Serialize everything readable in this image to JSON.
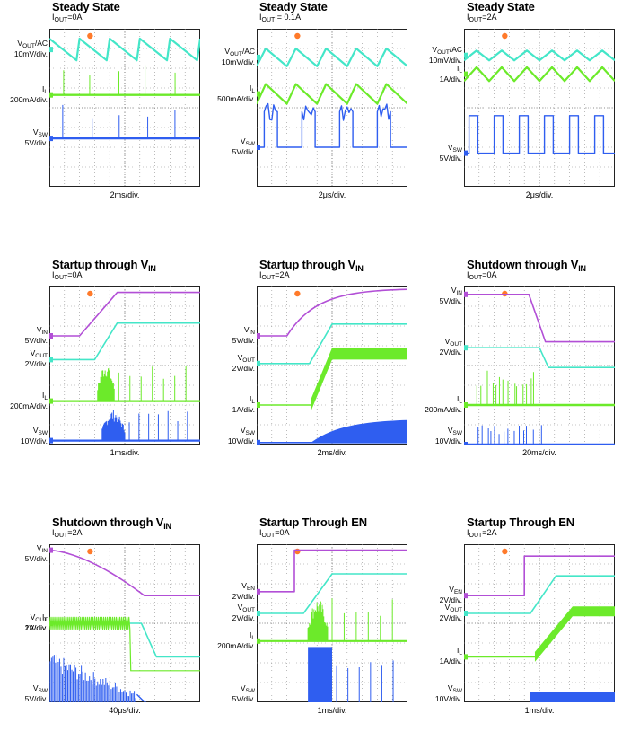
{
  "colors": {
    "cyan": "#44e6c8",
    "green": "#6cea2a",
    "blue": "#2f5ef0",
    "purple": "#b24fd6",
    "orange": "#ff7a2a",
    "grid": "#8c8c8c"
  },
  "chart_data": [
    {
      "id": "p1",
      "type": "line",
      "title": "Steady State",
      "condition": {
        "label": "I",
        "sub": "OUT",
        "rest": "=0A"
      },
      "time_div": "2ms/div.",
      "channels": [
        {
          "name": "V",
          "sub": "OUT",
          "suffix": "/AC",
          "scale": "10mV/div.",
          "color": "cyan"
        },
        {
          "name": "I",
          "sub": "L",
          "suffix": "",
          "scale": "200mA/div.",
          "color": "green"
        },
        {
          "name": "V",
          "sub": "SW",
          "suffix": "",
          "scale": "5V/div.",
          "color": "blue"
        }
      ],
      "waveforms": [
        {
          "ch": 0,
          "kind": "saw_down",
          "base_div": 1.05,
          "amp_div": 1.1,
          "periods": 5
        },
        {
          "ch": 1,
          "kind": "spikes_up",
          "base_div": 3.35,
          "amp_div": 1.6,
          "count": 5
        },
        {
          "ch": 2,
          "kind": "spikes_up",
          "base_div": 5.55,
          "amp_div": 1.9,
          "count": 5
        }
      ]
    },
    {
      "id": "p2",
      "type": "line",
      "title": "Steady State",
      "condition": {
        "label": "I",
        "sub": "OUT",
        "rest": " = 0.1A"
      },
      "time_div": "2μs/div.",
      "channels": [
        {
          "name": "V",
          "sub": "OUT",
          "suffix": "/AC",
          "scale": "10mV/div.",
          "color": "cyan"
        },
        {
          "name": "I",
          "sub": "L",
          "suffix": "",
          "scale": "500mA/div.",
          "color": "green"
        },
        {
          "name": "V",
          "sub": "SW",
          "suffix": "",
          "scale": "5V/div.",
          "color": "blue"
        }
      ],
      "waveforms": [
        {
          "ch": 0,
          "kind": "saw_up",
          "base_div": 1.45,
          "amp_div": 0.9,
          "periods": 5
        },
        {
          "ch": 1,
          "kind": "saw_up",
          "base_div": 3.3,
          "amp_div": 1.0,
          "periods": 5
        },
        {
          "ch": 2,
          "kind": "square_noisy",
          "lo_div": 6.0,
          "hi_div": 4.2,
          "periods": 4
        }
      ]
    },
    {
      "id": "p3",
      "type": "line",
      "title": "Steady State",
      "condition": {
        "label": "I",
        "sub": "OUT",
        "rest": "=2A"
      },
      "time_div": "2μs/div.",
      "channels": [
        {
          "name": "V",
          "sub": "OUT",
          "suffix": "/AC",
          "scale": "10mV/div.",
          "color": "cyan"
        },
        {
          "name": "I",
          "sub": "L",
          "suffix": "",
          "scale": "1A/div.",
          "color": "green"
        },
        {
          "name": "V",
          "sub": "SW",
          "suffix": "",
          "scale": "5V/div.",
          "color": "blue"
        }
      ],
      "waveforms": [
        {
          "ch": 0,
          "kind": "tri",
          "base_div": 1.35,
          "amp_div": 0.5,
          "periods": 6
        },
        {
          "ch": 1,
          "kind": "tri",
          "base_div": 2.3,
          "amp_div": 0.7,
          "periods": 6
        },
        {
          "ch": 2,
          "kind": "square",
          "lo_div": 6.3,
          "hi_div": 4.4,
          "periods": 6
        }
      ]
    },
    {
      "id": "p4",
      "type": "line",
      "title": "Startup through V",
      "title_sub": "IN",
      "condition": {
        "label": "I",
        "sub": "OUT",
        "rest": "=0A"
      },
      "time_div": "1ms/div.",
      "channels": [
        {
          "name": "V",
          "sub": "IN",
          "suffix": "",
          "scale": "5V/div.",
          "color": "purple"
        },
        {
          "name": "V",
          "sub": "OUT",
          "suffix": "",
          "scale": "2V/div.",
          "color": "cyan"
        },
        {
          "name": "I",
          "sub": "L",
          "suffix": "",
          "scale": "200mA/div.",
          "color": "green"
        },
        {
          "name": "V",
          "sub": "SW",
          "suffix": "",
          "scale": "10V/div.",
          "color": "blue"
        }
      ],
      "waveforms": [
        {
          "ch": 0,
          "kind": "ramp",
          "from_div": 2.5,
          "to_div": 0.3,
          "t0": 2.0,
          "t1": 4.5
        },
        {
          "ch": 1,
          "kind": "ramp",
          "from_div": 3.7,
          "to_div": 1.85,
          "t0": 3.0,
          "t1": 4.5
        },
        {
          "ch": 2,
          "kind": "burst",
          "base_div": 5.8,
          "amp_div": 2.0,
          "t0": 3.2,
          "t1": 4.3,
          "spikes_after": 7
        },
        {
          "ch": 3,
          "kind": "burst",
          "base_div": 7.8,
          "amp_div": 1.6,
          "t0": 3.5,
          "t1": 5.0,
          "spikes_after": 7
        }
      ]
    },
    {
      "id": "p5",
      "type": "line",
      "title": "Startup through V",
      "title_sub": "IN",
      "condition": {
        "label": "I",
        "sub": "OUT",
        "rest": "=2A"
      },
      "time_div": "2ms/div.",
      "channels": [
        {
          "name": "V",
          "sub": "IN",
          "suffix": "",
          "scale": "5V/div.",
          "color": "purple"
        },
        {
          "name": "V",
          "sub": "OUT",
          "suffix": "",
          "scale": "2V/div.",
          "color": "cyan"
        },
        {
          "name": "I",
          "sub": "L",
          "suffix": "",
          "scale": "1A/div.",
          "color": "green"
        },
        {
          "name": "V",
          "sub": "SW",
          "suffix": "",
          "scale": "10V/div.",
          "color": "blue"
        }
      ],
      "waveforms": [
        {
          "ch": 0,
          "kind": "expo",
          "from_div": 2.5,
          "to_div": 0.1,
          "t0": 2.0,
          "tau": 2.0
        },
        {
          "ch": 1,
          "kind": "ramp",
          "from_div": 3.9,
          "to_div": 1.9,
          "t0": 3.5,
          "t1": 5.0
        },
        {
          "ch": 2,
          "kind": "band_ramp",
          "from_div": 6.0,
          "to_div": 3.4,
          "t0": 3.6,
          "t1": 5.0,
          "band_div": 0.6
        },
        {
          "ch": 3,
          "kind": "band_rise",
          "base_div": 7.9,
          "top_div": 6.7,
          "t0": 3.6
        }
      ]
    },
    {
      "id": "p6",
      "type": "line",
      "title": "Shutdown through V",
      "title_sub": "IN",
      "condition": {
        "label": "I",
        "sub": "OUT",
        "rest": "=0A"
      },
      "time_div": "20ms/div.",
      "channels": [
        {
          "name": "V",
          "sub": "IN",
          "suffix": "",
          "scale": "5V/div.",
          "color": "purple"
        },
        {
          "name": "V",
          "sub": "OUT",
          "suffix": "",
          "scale": "2V/div.",
          "color": "cyan"
        },
        {
          "name": "I",
          "sub": "L",
          "suffix": "",
          "scale": "200mA/div.",
          "color": "green"
        },
        {
          "name": "V",
          "sub": "SW",
          "suffix": "",
          "scale": "10V/div.",
          "color": "blue"
        }
      ],
      "waveforms": [
        {
          "ch": 0,
          "kind": "ramp",
          "from_div": 0.4,
          "to_div": 2.8,
          "t0": 4.3,
          "t1": 5.4
        },
        {
          "ch": 1,
          "kind": "ramp",
          "from_div": 3.1,
          "to_div": 4.1,
          "t0": 5.0,
          "t1": 5.6
        },
        {
          "ch": 2,
          "kind": "spikes_up",
          "base_div": 6.0,
          "amp_div": 1.9,
          "count": 14,
          "until": 4.9
        },
        {
          "ch": 3,
          "kind": "spikes_up",
          "base_div": 8.0,
          "amp_div": 1.0,
          "count": 16,
          "until": 5.6
        }
      ]
    },
    {
      "id": "p7",
      "type": "line",
      "title": "Shutdown through V",
      "title_sub": "IN",
      "condition": {
        "label": "I",
        "sub": "OUT",
        "rest": "=2A"
      },
      "time_div": "40μs/div.",
      "channels": [
        {
          "name": "V",
          "sub": "IN",
          "suffix": "",
          "scale": "5V/div.",
          "color": "purple"
        },
        {
          "name": "V",
          "sub": "OUT",
          "suffix": "",
          "scale": "2V/div.",
          "color": "cyan"
        },
        {
          "name": "I",
          "sub": "L",
          "suffix": "",
          "scale": "1A/div.",
          "color": "green"
        },
        {
          "name": "V",
          "sub": "SW",
          "suffix": "",
          "scale": "5V/div.",
          "color": "blue"
        }
      ],
      "waveforms": [
        {
          "ch": 0,
          "kind": "droop",
          "from_div": 0.3,
          "to_div": 2.6,
          "t0": 0.0,
          "t1": 6.3
        },
        {
          "ch": 1,
          "kind": "ramp",
          "from_div": 4.0,
          "to_div": 5.7,
          "t0": 6.1,
          "t1": 7.1
        },
        {
          "ch": 2,
          "kind": "band_flat",
          "base_div": 4.0,
          "band_div": 0.6,
          "t1": 5.4,
          "after_div": 6.4
        },
        {
          "ch": 3,
          "kind": "dense_decay",
          "base_div": 8.8,
          "amp_div": 3.4,
          "t1": 5.8
        }
      ]
    },
    {
      "id": "p8",
      "type": "line",
      "title": "Startup Through EN",
      "condition": {
        "label": "I",
        "sub": "OUT",
        "rest": "=0A"
      },
      "time_div": "1ms/div.",
      "channels": [
        {
          "name": "V",
          "sub": "EN",
          "suffix": "",
          "scale": "2V/div.",
          "color": "purple"
        },
        {
          "name": "V",
          "sub": "OUT",
          "suffix": "",
          "scale": "2V/div.",
          "color": "cyan"
        },
        {
          "name": "I",
          "sub": "L",
          "suffix": "",
          "scale": "200mA/div.",
          "color": "green"
        },
        {
          "name": "V",
          "sub": "SW",
          "suffix": "",
          "scale": "5V/div.",
          "color": "blue"
        }
      ],
      "waveforms": [
        {
          "ch": 0,
          "kind": "step",
          "from_div": 2.4,
          "to_div": 0.3,
          "t0": 2.5
        },
        {
          "ch": 1,
          "kind": "ramp",
          "from_div": 3.5,
          "to_div": 1.5,
          "t0": 3.1,
          "t1": 5.0
        },
        {
          "ch": 2,
          "kind": "burst",
          "base_div": 4.9,
          "amp_div": 2.2,
          "t0": 3.4,
          "t1": 4.7,
          "spikes_after": 6
        },
        {
          "ch": 3,
          "kind": "block",
          "base_div": 8.7,
          "top_div": 5.2,
          "t0": 3.4,
          "t1": 5.0,
          "spikes_after": 6
        }
      ]
    },
    {
      "id": "p9",
      "type": "line",
      "title": "Startup Through EN",
      "condition": {
        "label": "I",
        "sub": "OUT",
        "rest": "=2A"
      },
      "time_div": "1ms/div.",
      "channels": [
        {
          "name": "V",
          "sub": "EN",
          "suffix": "",
          "scale": "2V/div.",
          "color": "purple"
        },
        {
          "name": "V",
          "sub": "OUT",
          "suffix": "",
          "scale": "2V/div.",
          "color": "cyan"
        },
        {
          "name": "I",
          "sub": "L",
          "suffix": "",
          "scale": "1A/div.",
          "color": "green"
        },
        {
          "name": "V",
          "sub": "SW",
          "suffix": "",
          "scale": "10V/div.",
          "color": "blue"
        }
      ],
      "waveforms": [
        {
          "ch": 0,
          "kind": "step",
          "from_div": 2.6,
          "to_div": 0.6,
          "t0": 4.0
        },
        {
          "ch": 1,
          "kind": "ramp",
          "from_div": 3.5,
          "to_div": 1.6,
          "t0": 4.4,
          "t1": 6.1
        },
        {
          "ch": 2,
          "kind": "band_ramp",
          "from_div": 5.7,
          "to_div": 3.4,
          "t0": 4.7,
          "t1": 7.2,
          "band_div": 0.5
        },
        {
          "ch": 3,
          "kind": "block",
          "base_div": 8.7,
          "top_div": 7.5,
          "t0": 4.4,
          "t1": 10.0,
          "spikes_after": 0
        }
      ]
    }
  ]
}
